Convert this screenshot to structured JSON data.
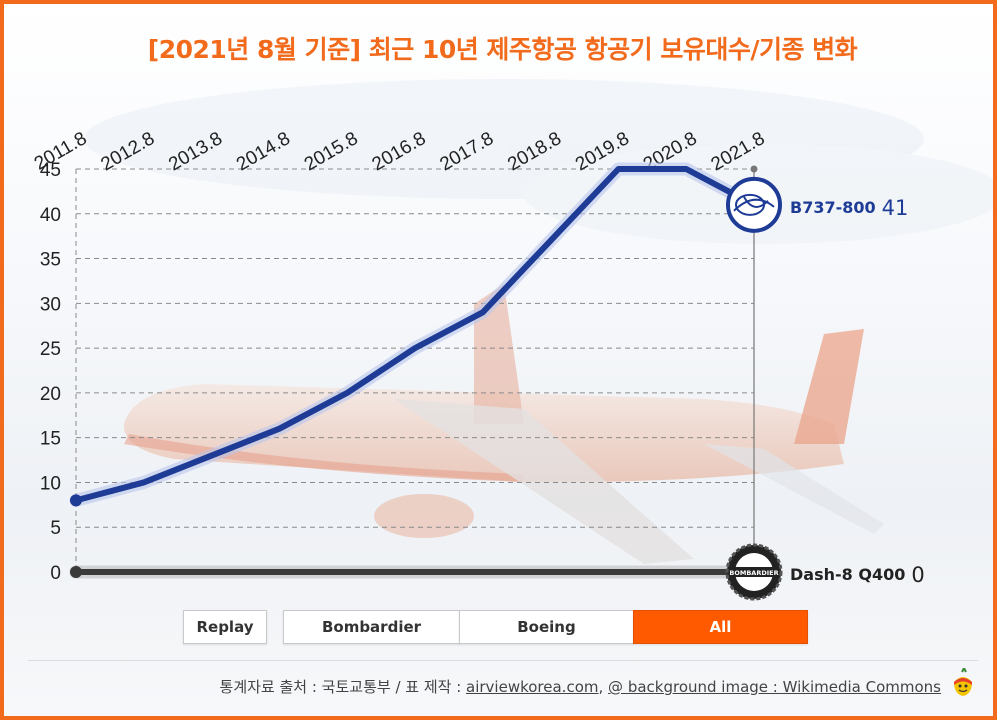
{
  "header": {
    "title": "[2021년 8월 기준] 최근 10년 제주항공 항공기 보유대수/기종 변화"
  },
  "chart_data": {
    "type": "line",
    "categories": [
      "2011.8",
      "2012.8",
      "2013.8",
      "2014.8",
      "2015.8",
      "2016.8",
      "2017.8",
      "2018.8",
      "2019.8",
      "2020.8",
      "2021.8"
    ],
    "y_ticks": [
      "0",
      "5",
      "10",
      "15",
      "20",
      "25",
      "30",
      "35",
      "40",
      "45"
    ],
    "ylim": [
      0,
      45
    ],
    "grid": true,
    "series": [
      {
        "name": "B737-800",
        "values": [
          8,
          10,
          13,
          16,
          20,
          25,
          29,
          37,
          45,
          45,
          41
        ],
        "color": "#1e3c96",
        "icon": "boeing-logo-icon"
      },
      {
        "name": "Dash-8 Q400",
        "values": [
          0,
          0,
          0,
          0,
          0,
          0,
          0,
          0,
          0,
          0,
          0
        ],
        "color": "#3a3a3a",
        "icon": "bombardier-logo-icon"
      }
    ],
    "end_labels": [
      {
        "series": "B737-800",
        "value_text": "41"
      },
      {
        "series": "Dash-8 Q400",
        "value_text": "0"
      }
    ]
  },
  "controls": {
    "replay": "Replay",
    "tabs": [
      {
        "label": "Bombardier",
        "active": false
      },
      {
        "label": "Boeing",
        "active": false
      },
      {
        "label": "All",
        "active": true
      }
    ]
  },
  "footer": {
    "prefix": "통계자료 출처 : 국토교통부 / 표 제작 : ",
    "link1": "airviewkorea.com",
    "sep": ", ",
    "link2": "@ background image : Wikimedia Commons"
  },
  "colors": {
    "accent": "#f26a1b",
    "button_active": "#ff5a00"
  }
}
